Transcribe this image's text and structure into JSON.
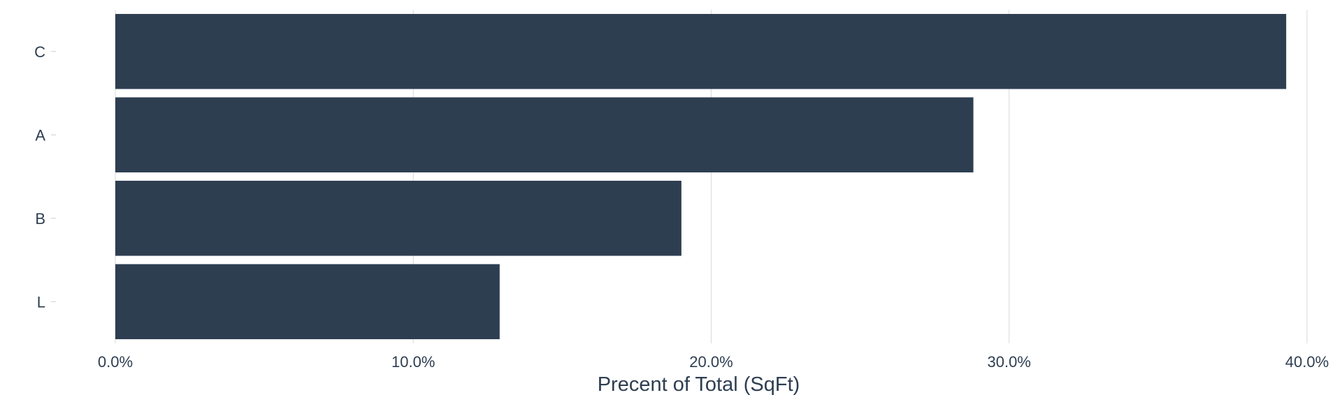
{
  "chart_data": {
    "type": "bar",
    "orientation": "horizontal",
    "categories": [
      "C",
      "A",
      "B",
      "L"
    ],
    "values": [
      39.3,
      28.8,
      19.0,
      12.9
    ],
    "x_tick_labels": [
      "0.0%",
      "10.0%",
      "20.0%",
      "30.0%",
      "40.0%"
    ],
    "x_ticks": [
      0,
      10,
      20,
      30,
      40
    ],
    "xlabel": "Precent of Total (SqFt)",
    "ylabel": "",
    "xlim": [
      0,
      40
    ],
    "grid": "vertical",
    "legend": "none"
  },
  "colors": {
    "bar": "#2e3e51",
    "text": "#2e3e51",
    "grid": "#d9d9d9",
    "tick_mark": "#cccccc"
  }
}
